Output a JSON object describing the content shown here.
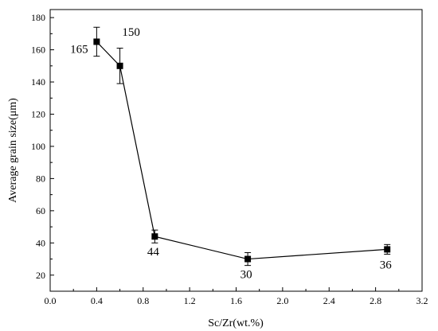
{
  "chart_data": {
    "type": "line",
    "title": "",
    "xlabel": "Sc/Zr(wt.%)",
    "ylabel": "Average grain size(μm)",
    "xlim": [
      0.0,
      3.2
    ],
    "ylim": [
      10,
      185
    ],
    "xticks": [
      0.0,
      0.4,
      0.8,
      1.2,
      1.6,
      2.0,
      2.4,
      2.8,
      3.2
    ],
    "xtick_labels": [
      "0.0",
      "0.4",
      "0.8",
      "1.2",
      "1.6",
      "2.0",
      "2.4",
      "2.8",
      "3.2"
    ],
    "yticks": [
      20,
      40,
      60,
      80,
      100,
      120,
      140,
      160,
      180
    ],
    "ytick_labels": [
      "20",
      "40",
      "60",
      "80",
      "100",
      "120",
      "140",
      "160",
      "180"
    ],
    "grid": false,
    "legend": "none",
    "marker": "square",
    "series": [
      {
        "x": [
          0.4,
          0.6,
          0.9,
          1.7,
          2.9
        ],
        "values": [
          165,
          150,
          44,
          30,
          36
        ],
        "error": [
          9,
          11,
          4,
          4,
          3
        ],
        "data_labels": [
          "165",
          "150",
          "44",
          "30",
          "36"
        ]
      }
    ]
  }
}
